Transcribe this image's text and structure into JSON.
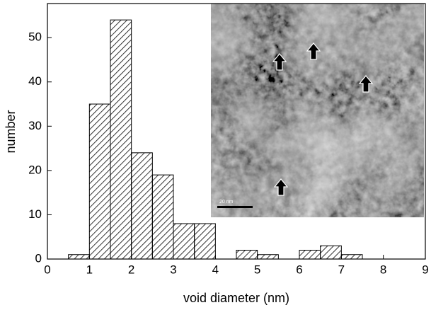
{
  "chart_data": {
    "type": "histogram",
    "xlabel": "void diameter (nm)",
    "ylabel": "number",
    "bins": [
      0.5,
      1,
      1.5,
      2,
      2.5,
      3,
      3.5,
      4,
      4.5,
      5,
      5.5,
      6,
      6.5,
      7,
      7.5
    ],
    "values": [
      1,
      35,
      54,
      24,
      19,
      8,
      8,
      0,
      2,
      1,
      0,
      2,
      3,
      1
    ],
    "color": "#000000",
    "xlim": [
      0,
      9
    ],
    "ylim": [
      0,
      57.7
    ],
    "xticks": [
      0,
      1,
      2,
      3,
      4,
      5,
      6,
      7,
      8,
      9
    ],
    "yticks": [
      0,
      10,
      20,
      30,
      40,
      50
    ]
  },
  "inset": {
    "scale_bar_label": "20 nm"
  }
}
